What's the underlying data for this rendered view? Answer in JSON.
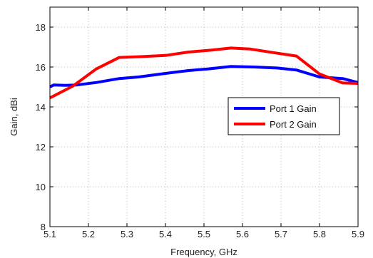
{
  "chart_data": {
    "type": "line",
    "title": "",
    "xlabel": "Frequency, GHz",
    "ylabel": "Gain, dBi",
    "xlim": [
      5.1,
      5.9
    ],
    "ylim": [
      8,
      19
    ],
    "xticks": [
      "5.1",
      "5.2",
      "5.3",
      "5.4",
      "5.5",
      "5.6",
      "5.7",
      "5.8",
      "5.9"
    ],
    "yticks": [
      "8",
      "10",
      "12",
      "14",
      "16",
      "18"
    ],
    "grid": true,
    "legend_position": "right",
    "series": [
      {
        "name": "Port 1 Gain",
        "color": "#0000ff",
        "x": [
          5.1,
          5.11,
          5.14,
          5.17,
          5.22,
          5.28,
          5.33,
          5.4,
          5.46,
          5.51,
          5.57,
          5.63,
          5.69,
          5.74,
          5.8,
          5.86,
          5.9
        ],
        "y": [
          15.0,
          15.1,
          15.08,
          15.1,
          15.22,
          15.42,
          15.5,
          15.68,
          15.82,
          15.9,
          16.03,
          16.0,
          15.95,
          15.85,
          15.5,
          15.42,
          15.22
        ]
      },
      {
        "name": "Port 2 Gain",
        "color": "#ff0000",
        "x": [
          5.1,
          5.13,
          5.16,
          5.22,
          5.28,
          5.34,
          5.4,
          5.46,
          5.52,
          5.57,
          5.62,
          5.68,
          5.74,
          5.8,
          5.86,
          5.9
        ],
        "y": [
          14.45,
          14.75,
          15.05,
          15.9,
          16.48,
          16.52,
          16.58,
          16.75,
          16.85,
          16.95,
          16.9,
          16.72,
          16.55,
          15.65,
          15.2,
          15.18
        ]
      }
    ]
  }
}
